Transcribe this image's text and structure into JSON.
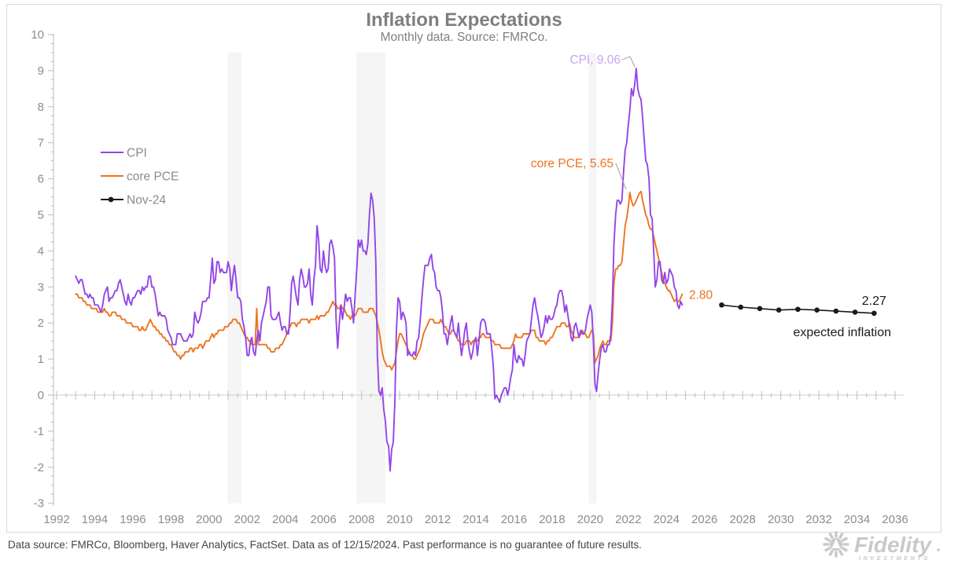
{
  "title": "Inflation Expectations",
  "subtitle": "Monthly data. Source: FMRCo.",
  "footer": "Data source: FMRCo, Bloomberg, Haver Analytics, FactSet. Data as of 12/15/2024. Past performance is no guarantee of future results.",
  "branding": {
    "name": "Fidelity",
    "sub": "INVESTMENTS"
  },
  "colors": {
    "cpi": "#9345e8",
    "cpi_label": "#c7a4f2",
    "pce": "#ed7420",
    "nov24": "#1a1a1a",
    "axis": "#c4c4c4",
    "zero_line": "#d6d6d6",
    "grid_text": "#8c8c8c",
    "band": "#f5f5f5",
    "frame": "#d8d8d8",
    "leader": "#aeaeae",
    "logo": "#c9c9c9"
  },
  "legend": [
    {
      "label": "CPI",
      "marker": "line"
    },
    {
      "label": "core PCE",
      "marker": "line"
    },
    {
      "label": "Nov-24",
      "marker": "line-dot"
    }
  ],
  "annotations": {
    "cpi_peak": "CPI, 9.06",
    "pce_peak": "core PCE, 5.65",
    "pce_last": "2.80",
    "exp_last": "2.27",
    "exp_label": "expected inflation"
  },
  "chart_data": {
    "type": "line",
    "title": "Inflation Expectations",
    "subtitle": "Monthly data. Source: FMRCo.",
    "x_axis": {
      "min": 1992,
      "max": 2036,
      "label_step": 2,
      "tick_step": 1,
      "minor_tick_step": 0.5
    },
    "y_axis": {
      "min": -3,
      "max": 10,
      "step": 1,
      "minor_step": 0.25
    },
    "legend_position": "upper-left",
    "grid": false,
    "recessions": [
      [
        2000.96,
        2001.7
      ],
      [
        2007.73,
        2009.26
      ],
      [
        2019.92,
        2020.33
      ]
    ],
    "series": [
      {
        "name": "CPI",
        "peak_label_value": 9.06,
        "start_year": 1993.0,
        "freq": "monthly",
        "values": [
          3.3,
          3.2,
          3.1,
          3.2,
          3.2,
          3.0,
          2.8,
          2.8,
          2.7,
          2.8,
          2.7,
          2.7,
          2.5,
          2.5,
          2.5,
          2.4,
          2.3,
          2.5,
          2.8,
          2.9,
          3.0,
          2.6,
          2.7,
          2.7,
          2.8,
          2.9,
          2.9,
          3.1,
          3.2,
          3.0,
          2.8,
          2.6,
          2.5,
          2.8,
          2.6,
          2.5,
          2.7,
          2.7,
          2.8,
          2.9,
          2.9,
          2.8,
          3.0,
          2.9,
          3.0,
          3.0,
          3.3,
          3.3,
          3.0,
          3.0,
          2.8,
          2.5,
          2.2,
          2.3,
          2.2,
          2.2,
          2.2,
          2.1,
          1.8,
          1.7,
          1.6,
          1.4,
          1.4,
          1.4,
          1.7,
          1.7,
          1.7,
          1.6,
          1.5,
          1.5,
          1.5,
          1.6,
          1.7,
          1.6,
          1.7,
          2.3,
          2.1,
          2.0,
          2.1,
          2.3,
          2.6,
          2.6,
          2.6,
          2.7,
          2.7,
          3.2,
          3.8,
          3.1,
          3.2,
          3.7,
          3.7,
          3.4,
          3.5,
          3.4,
          3.4,
          3.4,
          3.7,
          3.5,
          2.9,
          3.3,
          3.6,
          3.2,
          2.7,
          2.7,
          2.6,
          2.1,
          1.9,
          1.6,
          1.1,
          1.1,
          1.5,
          1.6,
          1.2,
          1.1,
          1.5,
          1.8,
          1.5,
          2.0,
          2.2,
          2.4,
          2.6,
          3.0,
          3.0,
          2.2,
          2.1,
          2.1,
          2.1,
          2.2,
          2.3,
          2.0,
          1.8,
          1.9,
          1.9,
          1.7,
          1.7,
          2.3,
          3.1,
          3.3,
          3.0,
          2.7,
          2.5,
          3.2,
          3.5,
          3.3,
          3.0,
          3.0,
          3.1,
          3.5,
          2.8,
          2.5,
          3.2,
          3.6,
          4.7,
          4.3,
          3.5,
          3.4,
          4.0,
          3.6,
          3.4,
          3.5,
          4.2,
          4.3,
          4.1,
          3.8,
          2.1,
          1.3,
          2.0,
          2.5,
          2.1,
          2.4,
          2.8,
          2.6,
          2.7,
          2.7,
          2.4,
          2.0,
          2.8,
          3.5,
          4.3,
          4.1,
          4.3,
          4.0,
          4.0,
          3.9,
          4.2,
          5.0,
          5.6,
          5.4,
          4.9,
          3.7,
          1.1,
          0.1,
          0.0,
          0.2,
          -0.4,
          -0.7,
          -1.3,
          -1.4,
          -2.1,
          -1.5,
          -1.3,
          -0.2,
          1.8,
          2.7,
          2.6,
          2.1,
          2.3,
          2.2,
          2.0,
          1.1,
          1.2,
          1.1,
          1.1,
          1.2,
          1.1,
          1.5,
          1.6,
          2.1,
          2.7,
          3.2,
          3.6,
          3.6,
          3.6,
          3.8,
          3.9,
          3.5,
          3.4,
          3.0,
          2.9,
          2.9,
          2.7,
          2.3,
          1.7,
          1.7,
          1.4,
          1.7,
          2.0,
          2.2,
          1.8,
          1.7,
          1.6,
          2.0,
          1.5,
          1.1,
          1.4,
          1.8,
          2.0,
          1.5,
          1.2,
          1.0,
          1.2,
          1.5,
          1.6,
          1.1,
          1.5,
          2.0,
          2.1,
          2.1,
          2.0,
          1.7,
          1.7,
          1.7,
          1.3,
          0.8,
          -0.1,
          0.0,
          -0.1,
          -0.2,
          0.0,
          0.1,
          0.2,
          0.2,
          0.0,
          0.2,
          0.5,
          0.7,
          1.4,
          1.0,
          0.9,
          1.1,
          1.0,
          1.0,
          0.8,
          1.1,
          1.5,
          1.6,
          1.7,
          2.1,
          2.5,
          2.7,
          2.4,
          2.2,
          1.9,
          1.6,
          1.7,
          1.9,
          2.2,
          2.0,
          2.2,
          2.1,
          2.1,
          2.2,
          2.4,
          2.5,
          2.8,
          2.9,
          2.9,
          2.7,
          2.3,
          2.5,
          2.2,
          1.9,
          1.6,
          1.5,
          1.9,
          2.0,
          1.8,
          1.6,
          1.8,
          1.7,
          1.7,
          1.8,
          2.1,
          2.3,
          2.5,
          2.3,
          1.5,
          0.3,
          0.1,
          0.6,
          1.0,
          1.3,
          1.4,
          1.2,
          1.2,
          1.4,
          1.4,
          1.7,
          2.6,
          4.2,
          5.0,
          5.4,
          5.4,
          5.3,
          5.4,
          6.2,
          6.8,
          7.0,
          7.5,
          7.9,
          8.5,
          8.3,
          8.6,
          9.06,
          8.5,
          8.3,
          8.2,
          7.7,
          7.1,
          6.5,
          6.4,
          6.0,
          5.0,
          4.9,
          4.0,
          3.0,
          3.2,
          3.7,
          3.7,
          3.2,
          3.1,
          3.4,
          3.1,
          3.2,
          3.5,
          3.4,
          3.3,
          3.0,
          2.9,
          2.5,
          2.4,
          2.6,
          2.5
        ]
      },
      {
        "name": "core PCE",
        "peak_label_value": 5.65,
        "last_label_value": 2.8,
        "start_year": 1993.0,
        "freq": "monthly",
        "values": [
          2.8,
          2.8,
          2.7,
          2.7,
          2.7,
          2.6,
          2.6,
          2.5,
          2.5,
          2.5,
          2.4,
          2.4,
          2.4,
          2.4,
          2.3,
          2.3,
          2.3,
          2.3,
          2.4,
          2.3,
          2.3,
          2.2,
          2.2,
          2.3,
          2.3,
          2.3,
          2.2,
          2.2,
          2.2,
          2.1,
          2.1,
          2.1,
          2.0,
          2.0,
          2.0,
          2.0,
          1.9,
          1.9,
          1.9,
          1.9,
          1.8,
          1.8,
          1.9,
          1.8,
          1.8,
          1.9,
          2.0,
          2.1,
          2.0,
          1.9,
          1.9,
          1.8,
          1.8,
          1.7,
          1.7,
          1.6,
          1.6,
          1.5,
          1.5,
          1.4,
          1.4,
          1.3,
          1.2,
          1.2,
          1.1,
          1.1,
          1.0,
          1.1,
          1.1,
          1.2,
          1.2,
          1.2,
          1.3,
          1.3,
          1.2,
          1.3,
          1.3,
          1.3,
          1.4,
          1.4,
          1.3,
          1.4,
          1.5,
          1.5,
          1.5,
          1.6,
          1.7,
          1.6,
          1.7,
          1.7,
          1.8,
          1.8,
          1.8,
          1.8,
          1.9,
          1.9,
          1.9,
          2.0,
          2.0,
          2.1,
          2.1,
          2.1,
          2.0,
          2.0,
          1.9,
          1.8,
          1.7,
          1.6,
          1.6,
          1.5,
          1.5,
          1.4,
          1.4,
          1.4,
          2.4,
          1.4,
          1.4,
          1.4,
          1.4,
          1.4,
          1.4,
          1.3,
          1.3,
          1.2,
          1.2,
          1.2,
          1.3,
          1.3,
          1.3,
          1.4,
          1.4,
          1.5,
          1.6,
          1.7,
          1.8,
          1.9,
          2.0,
          2.0,
          2.0,
          1.9,
          2.0,
          2.0,
          2.1,
          2.1,
          2.1,
          2.1,
          2.1,
          2.0,
          2.1,
          2.1,
          2.1,
          2.1,
          2.2,
          2.1,
          2.2,
          2.2,
          2.2,
          2.2,
          2.3,
          2.3,
          2.4,
          2.5,
          2.6,
          2.5,
          2.5,
          2.4,
          2.4,
          2.5,
          2.4,
          2.4,
          2.3,
          2.2,
          2.2,
          2.1,
          2.2,
          2.2,
          2.2,
          2.3,
          2.4,
          2.4,
          2.4,
          2.3,
          2.3,
          2.3,
          2.3,
          2.4,
          2.4,
          2.4,
          2.3,
          2.2,
          2.0,
          1.8,
          1.5,
          1.2,
          1.0,
          0.9,
          0.8,
          0.8,
          0.8,
          0.7,
          0.8,
          0.9,
          1.2,
          1.5,
          1.7,
          1.7,
          1.6,
          1.5,
          1.4,
          1.3,
          1.2,
          1.1,
          1.1,
          1.0,
          1.0,
          1.1,
          1.2,
          1.3,
          1.5,
          1.7,
          1.8,
          1.9,
          2.0,
          2.1,
          2.1,
          2.1,
          2.0,
          2.0,
          2.0,
          2.0,
          2.1,
          2.0,
          1.9,
          1.9,
          1.8,
          1.7,
          1.7,
          1.8,
          1.8,
          1.7,
          1.6,
          1.5,
          1.5,
          1.4,
          1.4,
          1.4,
          1.5,
          1.5,
          1.5,
          1.4,
          1.5,
          1.5,
          1.5,
          1.5,
          1.6,
          1.6,
          1.7,
          1.7,
          1.6,
          1.6,
          1.6,
          1.6,
          1.5,
          1.5,
          1.4,
          1.4,
          1.4,
          1.4,
          1.3,
          1.3,
          1.3,
          1.3,
          1.3,
          1.3,
          1.3,
          1.4,
          1.5,
          1.7,
          1.6,
          1.6,
          1.6,
          1.6,
          1.7,
          1.7,
          1.7,
          1.7,
          1.7,
          1.8,
          1.8,
          1.8,
          1.6,
          1.6,
          1.5,
          1.5,
          1.5,
          1.5,
          1.4,
          1.5,
          1.5,
          1.6,
          1.6,
          1.7,
          1.8,
          1.9,
          1.9,
          1.9,
          2.0,
          2.0,
          2.0,
          1.9,
          1.9,
          2.0,
          1.8,
          1.7,
          1.6,
          1.6,
          1.6,
          1.6,
          1.7,
          1.8,
          1.7,
          1.7,
          1.6,
          1.6,
          1.7,
          1.8,
          1.7,
          0.9,
          1.0,
          1.1,
          1.3,
          1.4,
          1.5,
          1.4,
          1.4,
          1.5,
          1.5,
          1.5,
          2.0,
          3.1,
          3.5,
          3.5,
          3.6,
          3.6,
          3.7,
          4.2,
          4.7,
          4.9,
          5.2,
          5.62,
          5.4,
          5.25,
          5.3,
          5.4,
          5.5,
          5.6,
          5.65,
          5.4,
          5.2,
          5.0,
          4.9,
          4.7,
          4.6,
          4.6,
          4.4,
          4.2,
          4.0,
          3.8,
          3.6,
          3.4,
          3.2,
          3.1,
          3.0,
          2.9,
          2.9,
          2.8,
          2.7,
          2.6,
          2.65,
          2.6,
          2.6,
          2.7,
          2.8
        ]
      },
      {
        "name": "Nov-24 (expected inflation)",
        "last_label_value": 2.27,
        "x": [
          2026.9,
          2027.9,
          2028.9,
          2029.9,
          2030.9,
          2031.9,
          2032.9,
          2033.9,
          2034.9
        ],
        "values": [
          2.5,
          2.44,
          2.4,
          2.36,
          2.38,
          2.36,
          2.33,
          2.3,
          2.27
        ]
      }
    ]
  }
}
